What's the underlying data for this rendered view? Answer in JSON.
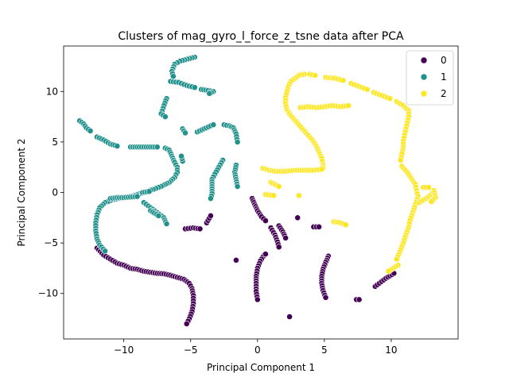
{
  "chart_data": {
    "type": "scatter",
    "title": "Clusters of mag_gyro_l_force_z_tsne data after PCA",
    "xlabel": "Principal Component 1",
    "ylabel": "Principal Component 2",
    "xlim": [
      -14.5,
      15
    ],
    "ylim": [
      -14.5,
      14.5
    ],
    "xticks": [
      -10,
      -5,
      0,
      5,
      10
    ],
    "yticks": [
      -10,
      -5,
      0,
      5,
      10
    ],
    "legend_position": "top-right",
    "grid": false,
    "series": [
      {
        "name": "0",
        "color": "#440154",
        "segments": [
          [
            [
              -12.0,
              -5.5
            ],
            [
              -11.5,
              -6.2
            ],
            [
              -11.0,
              -6.6
            ],
            [
              -10.5,
              -7.0
            ],
            [
              -10.0,
              -7.2
            ],
            [
              -9.5,
              -7.5
            ],
            [
              -9.0,
              -7.6
            ],
            [
              -8.5,
              -7.8
            ],
            [
              -8.0,
              -7.9
            ],
            [
              -7.5,
              -8.0
            ],
            [
              -7.0,
              -8.05
            ],
            [
              -6.5,
              -8.2
            ],
            [
              -6.0,
              -8.4
            ],
            [
              -5.5,
              -8.6
            ],
            [
              -5.1,
              -9.0
            ],
            [
              -4.9,
              -9.5
            ],
            [
              -4.8,
              -10.2
            ],
            [
              -4.8,
              -11.0
            ],
            [
              -4.9,
              -11.8
            ],
            [
              -5.1,
              -12.5
            ],
            [
              -5.3,
              -13.0
            ]
          ],
          [
            [
              -5.4,
              -3.6
            ],
            [
              -4.8,
              -3.5
            ],
            [
              -4.3,
              -3.6
            ]
          ],
          [
            [
              -3.8,
              -3.0
            ],
            [
              -3.5,
              -2.3
            ]
          ],
          [
            [
              -1.6,
              -6.7
            ]
          ],
          [
            [
              -0.4,
              -0.6
            ],
            [
              -0.2,
              -1.2
            ],
            [
              0.0,
              -1.8
            ],
            [
              0.3,
              -2.4
            ],
            [
              0.6,
              -2.8
            ]
          ],
          [
            [
              1.0,
              -3.5
            ],
            [
              1.3,
              -4.2
            ],
            [
              1.5,
              -4.9
            ],
            [
              1.6,
              -5.4
            ]
          ],
          [
            [
              0.5,
              -6.2
            ],
            [
              0.2,
              -6.8
            ],
            [
              0.0,
              -7.5
            ],
            [
              -0.1,
              -8.3
            ],
            [
              -0.1,
              -9.0
            ],
            [
              -0.1,
              -9.8
            ],
            [
              0.0,
              -10.6
            ]
          ],
          [
            [
              0.6,
              -6.1
            ]
          ],
          [
            [
              1.6,
              -3.3
            ],
            [
              1.9,
              -3.9
            ],
            [
              2.1,
              -4.5
            ]
          ],
          [
            [
              3.0,
              -2.5
            ]
          ],
          [
            [
              4.2,
              -3.4
            ],
            [
              4.6,
              -3.4
            ]
          ],
          [
            [
              5.3,
              -6.3
            ],
            [
              5.1,
              -6.9
            ],
            [
              4.9,
              -7.6
            ],
            [
              4.8,
              -8.3
            ],
            [
              4.8,
              -9.0
            ],
            [
              4.9,
              -9.7
            ],
            [
              5.1,
              -10.4
            ]
          ],
          [
            [
              2.4,
              -12.3
            ]
          ],
          [
            [
              7.4,
              -10.6
            ],
            [
              7.6,
              -10.6
            ]
          ],
          [
            [
              8.8,
              -9.3
            ],
            [
              9.6,
              -8.5
            ],
            [
              10.2,
              -8.0
            ]
          ]
        ]
      },
      {
        "name": "1",
        "color": "#21918c",
        "segments": [
          [
            [
              -13.3,
              7.1
            ],
            [
              -13.0,
              6.8
            ],
            [
              -12.8,
              6.4
            ],
            [
              -12.5,
              6.1
            ]
          ],
          [
            [
              -12.0,
              5.5
            ],
            [
              -11.5,
              5.2
            ],
            [
              -11.0,
              4.8
            ],
            [
              -10.5,
              4.6
            ]
          ],
          [
            [
              -9.5,
              4.5
            ],
            [
              -9.0,
              4.5
            ],
            [
              -8.5,
              4.5
            ],
            [
              -8.0,
              4.5
            ],
            [
              -7.5,
              4.5
            ]
          ],
          [
            [
              -6.9,
              4.4
            ],
            [
              -6.6,
              4.2
            ],
            [
              -6.4,
              3.6
            ],
            [
              -6.2,
              3.0
            ],
            [
              -6.0,
              2.5
            ],
            [
              -6.0,
              2.0
            ],
            [
              -6.2,
              1.5
            ],
            [
              -6.6,
              1.0
            ],
            [
              -7.2,
              0.6
            ],
            [
              -7.8,
              0.3
            ],
            [
              -8.5,
              0.0
            ],
            [
              -9.2,
              -0.3
            ],
            [
              -10.0,
              -0.5
            ],
            [
              -10.8,
              -0.7
            ],
            [
              -11.4,
              -1.0
            ],
            [
              -11.8,
              -1.5
            ],
            [
              -12.0,
              -2.2
            ],
            [
              -12.1,
              -3.0
            ],
            [
              -12.1,
              -3.8
            ],
            [
              -12.0,
              -4.6
            ],
            [
              -11.8,
              -5.2
            ],
            [
              -11.4,
              -5.8
            ]
          ],
          [
            [
              -11.0,
              -0.6
            ],
            [
              -10.5,
              -0.5
            ],
            [
              -10.0,
              -0.5
            ],
            [
              -9.5,
              -0.45
            ],
            [
              -9.0,
              -0.4
            ]
          ],
          [
            [
              -8.5,
              -1.0
            ],
            [
              -8.0,
              -1.5
            ],
            [
              -7.5,
              -2.0
            ],
            [
              -7.0,
              -2.5
            ],
            [
              -6.8,
              -3.1
            ]
          ],
          [
            [
              -5.6,
              3.1
            ],
            [
              -5.7,
              3.6
            ]
          ],
          [
            [
              -5.4,
              13.2
            ],
            [
              -5.1,
              13.3
            ],
            [
              -4.7,
              13.4
            ],
            [
              -5.8,
              13.0
            ],
            [
              -6.2,
              12.7
            ],
            [
              -6.4,
              12.0
            ],
            [
              -6.3,
              11.5
            ]
          ],
          [
            [
              -6.5,
              11.0
            ],
            [
              -5.9,
              10.9
            ],
            [
              -5.3,
              10.6
            ],
            [
              -4.7,
              10.4
            ]
          ],
          [
            [
              -4.2,
              10.2
            ],
            [
              -3.7,
              10.1
            ],
            [
              -3.3,
              10.0
            ],
            [
              -3.6,
              9.8
            ]
          ],
          [
            [
              -6.8,
              9.3
            ],
            [
              -7.0,
              8.6
            ],
            [
              -7.2,
              7.8
            ],
            [
              -6.9,
              7.5
            ]
          ],
          [
            [
              -5.6,
              6.3
            ],
            [
              -5.4,
              5.9
            ]
          ],
          [
            [
              -4.5,
              6.0
            ],
            [
              -3.5,
              6.6
            ],
            [
              -3.3,
              6.7
            ]
          ],
          [
            [
              -2.5,
              6.7
            ],
            [
              -2.1,
              6.6
            ],
            [
              -1.8,
              6.4
            ],
            [
              -1.6,
              5.8
            ],
            [
              -1.5,
              5.0
            ]
          ],
          [
            [
              -2.6,
              3.2
            ],
            [
              -2.9,
              2.5
            ],
            [
              -3.2,
              1.8
            ],
            [
              -3.4,
              1.3
            ],
            [
              -3.4,
              0.6
            ],
            [
              -3.4,
              -0.1
            ],
            [
              -3.5,
              -0.6
            ]
          ],
          [
            [
              -1.6,
              2.7
            ],
            [
              -1.7,
              2.0
            ],
            [
              -1.5,
              0.6
            ]
          ],
          [
            [
              -8.6,
              0.0
            ],
            [
              -8.1,
              0.1
            ]
          ],
          [
            [
              -8.0,
              -1.8
            ],
            [
              -7.4,
              -2.3
            ]
          ]
        ]
      },
      {
        "name": "2",
        "color": "#fde725",
        "segments": [
          [
            [
              3.5,
              11.7
            ],
            [
              3.1,
              11.6
            ],
            [
              2.8,
              11.3
            ],
            [
              2.5,
              11.0
            ],
            [
              2.3,
              10.5
            ],
            [
              2.2,
              10.0
            ],
            [
              2.1,
              9.4
            ],
            [
              2.1,
              8.8
            ],
            [
              2.2,
              8.2
            ],
            [
              2.5,
              7.6
            ],
            [
              2.9,
              7.0
            ],
            [
              3.3,
              6.4
            ],
            [
              3.7,
              5.8
            ],
            [
              4.1,
              5.2
            ],
            [
              4.4,
              4.6
            ],
            [
              4.6,
              4.0
            ],
            [
              4.8,
              3.4
            ],
            [
              4.9,
              2.8
            ],
            [
              4.9,
              2.4
            ]
          ],
          [
            [
              3.9,
              11.7
            ],
            [
              4.3,
              11.6
            ]
          ],
          [
            [
              5.1,
              11.4
            ],
            [
              5.8,
              11.3
            ],
            [
              6.4,
              11.1
            ]
          ],
          [
            [
              7.0,
              10.8
            ],
            [
              7.6,
              10.5
            ],
            [
              8.2,
              10.2
            ]
          ],
          [
            [
              8.7,
              9.9
            ],
            [
              9.3,
              9.6
            ],
            [
              9.9,
              9.3
            ]
          ],
          [
            [
              10.4,
              9.0
            ],
            [
              10.9,
              8.6
            ],
            [
              11.3,
              8.1
            ],
            [
              11.3,
              7.5
            ],
            [
              11.2,
              6.9
            ],
            [
              11.1,
              6.3
            ],
            [
              11.0,
              5.7
            ],
            [
              10.9,
              5.1
            ],
            [
              10.9,
              4.5
            ],
            [
              10.8,
              3.8
            ],
            [
              10.7,
              3.2
            ]
          ],
          [
            [
              10.8,
              2.6
            ],
            [
              11.2,
              2.0
            ],
            [
              11.5,
              1.4
            ],
            [
              11.8,
              0.8
            ],
            [
              11.9,
              0.2
            ],
            [
              12.0,
              -0.4
            ],
            [
              11.8,
              -1.2
            ],
            [
              11.6,
              -2.0
            ],
            [
              11.4,
              -2.8
            ],
            [
              11.3,
              -3.4
            ],
            [
              11.1,
              -4.2
            ],
            [
              10.9,
              -5.0
            ],
            [
              10.7,
              -5.7
            ],
            [
              10.4,
              -6.6
            ]
          ],
          [
            [
              12.1,
              -1.0
            ],
            [
              12.6,
              -0.6
            ],
            [
              13.0,
              -0.2
            ],
            [
              13.2,
              0.2
            ],
            [
              13.3,
              -0.5
            ],
            [
              13.0,
              -0.9
            ]
          ],
          [
            [
              12.4,
              0.5
            ],
            [
              12.8,
              0.5
            ]
          ],
          [
            [
              3.2,
              8.4
            ],
            [
              3.8,
              8.5
            ],
            [
              4.4,
              8.4
            ],
            [
              5.0,
              8.5
            ],
            [
              5.6,
              8.6
            ],
            [
              6.2,
              8.5
            ],
            [
              6.8,
              8.6
            ]
          ],
          [
            [
              0.4,
              2.4
            ],
            [
              0.9,
              2.2
            ],
            [
              1.4,
              2.1
            ],
            [
              2.1,
              2.1
            ],
            [
              2.8,
              2.2
            ],
            [
              3.5,
              2.2
            ],
            [
              4.2,
              2.2
            ],
            [
              4.8,
              2.3
            ]
          ],
          [
            [
              1.0,
              1.0
            ],
            [
              1.6,
              0.6
            ]
          ],
          [
            [
              0.6,
              -0.2
            ],
            [
              1.2,
              -0.3
            ]
          ],
          [
            [
              3.1,
              -0.3
            ]
          ],
          [
            [
              5.7,
              -2.9
            ],
            [
              6.2,
              -3.0
            ],
            [
              6.6,
              -3.2
            ]
          ],
          [
            [
              10.5,
              -7.2
            ],
            [
              9.8,
              -7.8
            ]
          ]
        ]
      }
    ]
  }
}
